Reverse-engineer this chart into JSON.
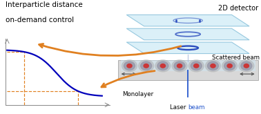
{
  "title_line1": "Interparticle distance",
  "title_line2": "on-demand control",
  "curve_color": "#0000bb",
  "dashed_color": "#e08020",
  "arrow_color": "#e08020",
  "bg_color": "#ffffff",
  "title_fontsize": 7.5,
  "detector_label": "2D detector",
  "scattered_label": "Scattered beam",
  "monolayer_label": "Monolayer",
  "laser_label_black": "Laser ",
  "laser_label_blue": "beam",
  "panel_face_color": "#c8e8f5",
  "panel_edge_color": "#6ab0d0",
  "ring_color": "#2244bb",
  "trough_color": "#cccccc",
  "trough_edge": "#999999",
  "water_color": "#cce8f8",
  "particle_body": "#9999aa",
  "particle_core": "#cc3333",
  "arrow_double_color": "#555555",
  "beam_color": "#3333cc",
  "laser_blue": "#2255cc",
  "scatter_line_color": "#aabbdd"
}
